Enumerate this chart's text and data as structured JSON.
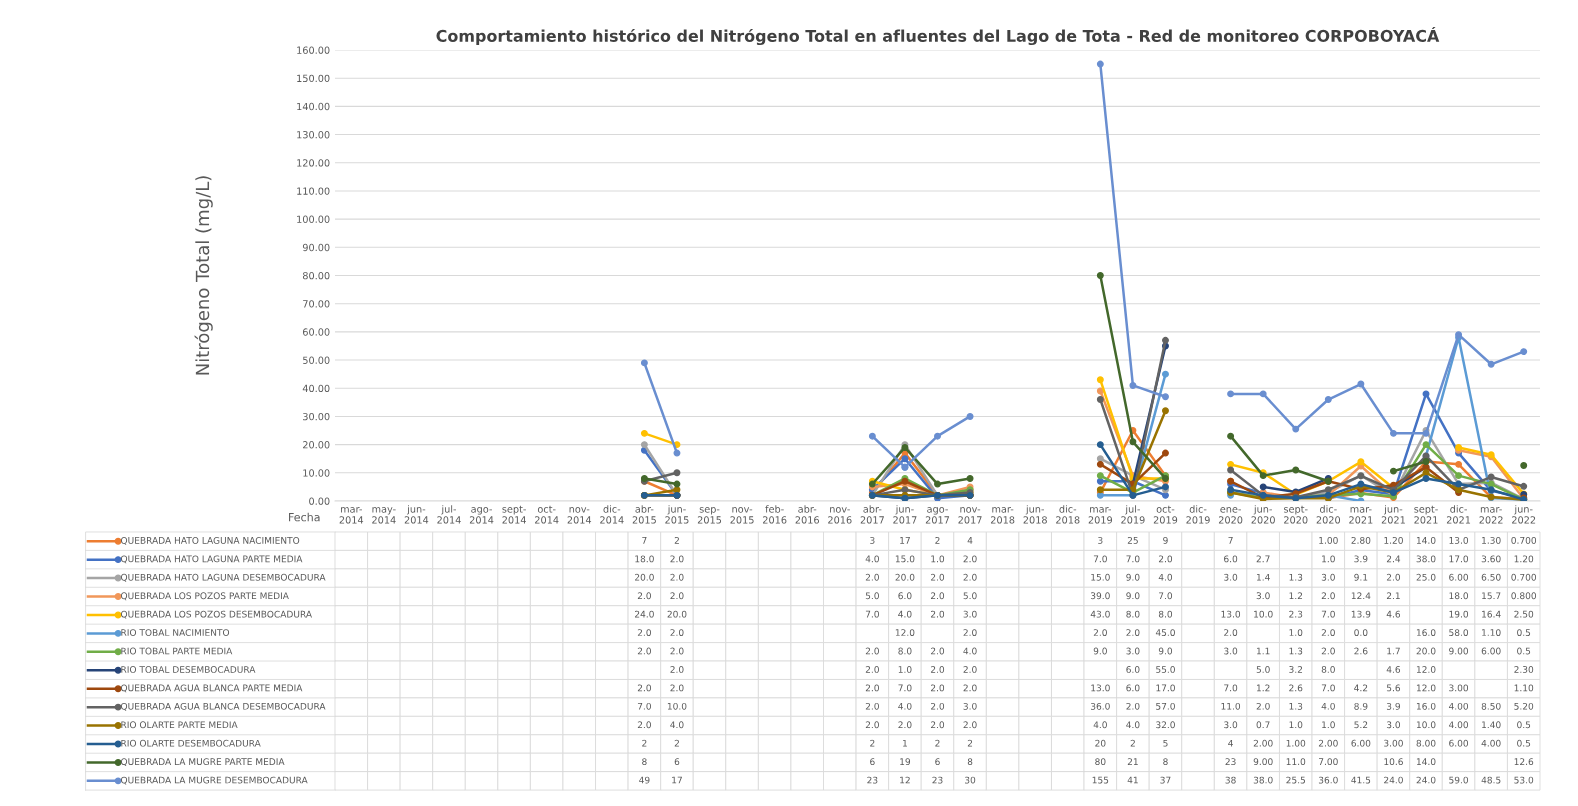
{
  "chart_data": {
    "type": "line",
    "title": "Comportamiento histórico del Nitrógeno Total en afluentes del Lago de Tota - Red de monitoreo CORPOBOYACÁ",
    "ylabel": "Nitrógeno Total (mg/L)",
    "xlabel": "Fecha",
    "categories": [
      "mar-2014",
      "may-2014",
      "jun-2014",
      "jul-2014",
      "ago-2014",
      "sept-2014",
      "oct-2014",
      "nov-2014",
      "dic-2014",
      "abr-2015",
      "jun-2015",
      "sep-2015",
      "nov-2015",
      "feb-2016",
      "abr-2016",
      "nov-2016",
      "abr-2017",
      "jun-2017",
      "ago-2017",
      "nov-2017",
      "mar-2018",
      "jun-2018",
      "dic-2018",
      "mar-2019",
      "jul-2019",
      "oct-2019",
      "dic-2019",
      "ene-2020",
      "jun-2020",
      "sept-2020",
      "dic-2020",
      "mar-2021",
      "jun-2021",
      "sept-2021",
      "dic-2021",
      "mar-2022",
      "jun-2022"
    ],
    "ylim": [
      0,
      160
    ],
    "yticks": [
      {
        "value": 0,
        "label": "0.00"
      },
      {
        "value": 10,
        "label": "10.00"
      },
      {
        "value": 20,
        "label": "20.00"
      },
      {
        "value": 30,
        "label": "30.00"
      },
      {
        "value": 40,
        "label": "40.00"
      },
      {
        "value": 50,
        "label": "50.00"
      },
      {
        "value": 60,
        "label": "60.00"
      },
      {
        "value": 70,
        "label": "70.00"
      },
      {
        "value": 80,
        "label": "80.00"
      },
      {
        "value": 90,
        "label": "90.00"
      },
      {
        "value": 100,
        "label": "100.00"
      },
      {
        "value": 110,
        "label": "110.00"
      },
      {
        "value": 120,
        "label": "120.00"
      },
      {
        "value": 130,
        "label": "130.00"
      },
      {
        "value": 140,
        "label": "140.00"
      },
      {
        "value": 150,
        "label": "150.00"
      },
      {
        "value": 160,
        "label": "160.00"
      }
    ],
    "grid": "y",
    "legend": "bottom",
    "marker": "circle",
    "line_style": "solid",
    "series": [
      {
        "name": "QUEBRADA HATO LAGUNA NACIMIENTO",
        "color": "#ed7d31",
        "values": [
          null,
          null,
          null,
          null,
          null,
          null,
          null,
          null,
          null,
          7,
          2,
          null,
          null,
          null,
          null,
          null,
          3,
          17,
          2,
          4,
          null,
          null,
          null,
          3,
          25,
          9,
          null,
          7,
          null,
          null,
          1.0,
          2.8,
          1.2,
          14.0,
          13.0,
          1.3,
          0.7
        ],
        "value_labels": [
          null,
          null,
          null,
          null,
          null,
          null,
          null,
          null,
          null,
          "7",
          "2",
          null,
          null,
          null,
          null,
          null,
          "3",
          "17",
          "2",
          "4",
          null,
          null,
          null,
          "3",
          "25",
          "9",
          null,
          "7",
          null,
          null,
          "1.00",
          "2.80",
          "1.20",
          "14.0",
          "13.0",
          "1.30",
          "0.700"
        ]
      },
      {
        "name": "QUEBRADA HATO LAGUNA PARTE MEDIA",
        "color": "#4472c4",
        "values": [
          null,
          null,
          null,
          null,
          null,
          null,
          null,
          null,
          null,
          18.0,
          2.0,
          null,
          null,
          null,
          null,
          null,
          4.0,
          15.0,
          1.0,
          2.0,
          null,
          null,
          null,
          7.0,
          7.0,
          2.0,
          null,
          6.0,
          2.7,
          null,
          1.0,
          3.9,
          2.4,
          38.0,
          17.0,
          3.6,
          1.2
        ],
        "value_labels": [
          null,
          null,
          null,
          null,
          null,
          null,
          null,
          null,
          null,
          "18.0",
          "2.0",
          null,
          null,
          null,
          null,
          null,
          "4.0",
          "15.0",
          "1.0",
          "2.0",
          null,
          null,
          null,
          "7.0",
          "7.0",
          "2.0",
          null,
          "6.0",
          "2.7",
          null,
          "1.0",
          "3.9",
          "2.4",
          "38.0",
          "17.0",
          "3.60",
          "1.20"
        ]
      },
      {
        "name": "QUEBRADA HATO LAGUNA DESEMBOCADURA",
        "color": "#a5a5a5",
        "values": [
          null,
          null,
          null,
          null,
          null,
          null,
          null,
          null,
          null,
          20.0,
          2.0,
          null,
          null,
          null,
          null,
          null,
          2.0,
          20.0,
          2.0,
          2.0,
          null,
          null,
          null,
          15.0,
          9.0,
          4.0,
          null,
          3.0,
          1.4,
          1.3,
          3.0,
          9.1,
          2.0,
          25.0,
          6.0,
          6.5,
          0.7
        ],
        "value_labels": [
          null,
          null,
          null,
          null,
          null,
          null,
          null,
          null,
          null,
          "20.0",
          "2.0",
          null,
          null,
          null,
          null,
          null,
          "2.0",
          "20.0",
          "2.0",
          "2.0",
          null,
          null,
          null,
          "15.0",
          "9.0",
          "4.0",
          null,
          "3.0",
          "1.4",
          "1.3",
          "3.0",
          "9.1",
          "2.0",
          "25.0",
          "6.00",
          "6.50",
          "0.700"
        ]
      },
      {
        "name": "QUEBRADA LOS POZOS PARTE MEDIA",
        "color": "#f1975a",
        "values": [
          null,
          null,
          null,
          null,
          null,
          null,
          null,
          null,
          null,
          2.0,
          2.0,
          null,
          null,
          null,
          null,
          null,
          5.0,
          6.0,
          2.0,
          5.0,
          null,
          null,
          null,
          39.0,
          9.0,
          7.0,
          null,
          null,
          3.0,
          1.2,
          2.0,
          12.4,
          2.1,
          null,
          18.0,
          15.7,
          0.8
        ],
        "value_labels": [
          null,
          null,
          null,
          null,
          null,
          null,
          null,
          null,
          null,
          "2.0",
          "2.0",
          null,
          null,
          null,
          null,
          null,
          "5.0",
          "6.0",
          "2.0",
          "5.0",
          null,
          null,
          null,
          "39.0",
          "9.0",
          "7.0",
          null,
          null,
          "3.0",
          "1.2",
          "2.0",
          "12.4",
          "2.1",
          null,
          "18.0",
          "15.7",
          "0.800"
        ]
      },
      {
        "name": "QUEBRADA LOS POZOS DESEMBOCADURA",
        "color": "#ffc000",
        "values": [
          null,
          null,
          null,
          null,
          null,
          null,
          null,
          null,
          null,
          24.0,
          20.0,
          null,
          null,
          null,
          null,
          null,
          7.0,
          4.0,
          2.0,
          3.0,
          null,
          null,
          null,
          43.0,
          8.0,
          8.0,
          null,
          13.0,
          10.0,
          2.3,
          7.0,
          13.9,
          4.6,
          null,
          19.0,
          16.4,
          2.5
        ],
        "value_labels": [
          null,
          null,
          null,
          null,
          null,
          null,
          null,
          null,
          null,
          "24.0",
          "20.0",
          null,
          null,
          null,
          null,
          null,
          "7.0",
          "4.0",
          "2.0",
          "3.0",
          null,
          null,
          null,
          "43.0",
          "8.0",
          "8.0",
          null,
          "13.0",
          "10.0",
          "2.3",
          "7.0",
          "13.9",
          "4.6",
          null,
          "19.0",
          "16.4",
          "2.50"
        ]
      },
      {
        "name": "RIO TOBAL NACIMIENTO",
        "color": "#5b9bd5",
        "values": [
          null,
          null,
          null,
          null,
          null,
          null,
          null,
          null,
          null,
          2.0,
          2.0,
          null,
          null,
          null,
          null,
          null,
          null,
          12.0,
          null,
          2.0,
          null,
          null,
          null,
          2.0,
          2.0,
          45.0,
          null,
          2.0,
          null,
          1.0,
          2.0,
          0.0,
          null,
          16.0,
          58.0,
          1.1,
          0.5
        ],
        "value_labels": [
          null,
          null,
          null,
          null,
          null,
          null,
          null,
          null,
          null,
          "2.0",
          "2.0",
          null,
          null,
          null,
          null,
          null,
          null,
          "12.0",
          null,
          "2.0",
          null,
          null,
          null,
          "2.0",
          "2.0",
          "45.0",
          null,
          "2.0",
          null,
          "1.0",
          "2.0",
          "0.0",
          null,
          "16.0",
          "58.0",
          "1.10",
          "0.5"
        ]
      },
      {
        "name": "RIO TOBAL PARTE MEDIA",
        "color": "#70ad47",
        "values": [
          null,
          null,
          null,
          null,
          null,
          null,
          null,
          null,
          null,
          2.0,
          2.0,
          null,
          null,
          null,
          null,
          null,
          2.0,
          8.0,
          2.0,
          4.0,
          null,
          null,
          null,
          9.0,
          3.0,
          9.0,
          null,
          3.0,
          1.1,
          1.3,
          2.0,
          2.6,
          1.7,
          20.0,
          9.0,
          6.0,
          0.5
        ],
        "value_labels": [
          null,
          null,
          null,
          null,
          null,
          null,
          null,
          null,
          null,
          "2.0",
          "2.0",
          null,
          null,
          null,
          null,
          null,
          "2.0",
          "8.0",
          "2.0",
          "4.0",
          null,
          null,
          null,
          "9.0",
          "3.0",
          "9.0",
          null,
          "3.0",
          "1.1",
          "1.3",
          "2.0",
          "2.6",
          "1.7",
          "20.0",
          "9.00",
          "6.00",
          "0.5"
        ]
      },
      {
        "name": "RIO TOBAL DESEMBOCADURA",
        "color": "#264478",
        "values": [
          null,
          null,
          null,
          null,
          null,
          null,
          null,
          null,
          null,
          null,
          2.0,
          null,
          null,
          null,
          null,
          null,
          2.0,
          1.0,
          2.0,
          2.0,
          null,
          null,
          null,
          null,
          6.0,
          55.0,
          null,
          null,
          5.0,
          3.2,
          8.0,
          null,
          4.6,
          12.0,
          null,
          null,
          2.3
        ],
        "value_labels": [
          null,
          null,
          null,
          null,
          null,
          null,
          null,
          null,
          null,
          null,
          "2.0",
          null,
          null,
          null,
          null,
          null,
          "2.0",
          "1.0",
          "2.0",
          "2.0",
          null,
          null,
          null,
          null,
          "6.0",
          "55.0",
          null,
          null,
          "5.0",
          "3.2",
          "8.0",
          null,
          "4.6",
          "12.0",
          null,
          null,
          "2.30"
        ]
      },
      {
        "name": "QUEBRADA AGUA BLANCA PARTE MEDIA",
        "color": "#9e480e",
        "values": [
          null,
          null,
          null,
          null,
          null,
          null,
          null,
          null,
          null,
          2.0,
          2.0,
          null,
          null,
          null,
          null,
          null,
          2.0,
          7.0,
          2.0,
          2.0,
          null,
          null,
          null,
          13.0,
          6.0,
          17.0,
          null,
          7.0,
          1.2,
          2.6,
          7.0,
          4.2,
          5.6,
          12.0,
          3.0,
          null,
          1.1
        ],
        "value_labels": [
          null,
          null,
          null,
          null,
          null,
          null,
          null,
          null,
          null,
          "2.0",
          "2.0",
          null,
          null,
          null,
          null,
          null,
          "2.0",
          "7.0",
          "2.0",
          "2.0",
          null,
          null,
          null,
          "13.0",
          "6.0",
          "17.0",
          null,
          "7.0",
          "1.2",
          "2.6",
          "7.0",
          "4.2",
          "5.6",
          "12.0",
          "3.00",
          null,
          "1.10"
        ]
      },
      {
        "name": "QUEBRADA AGUA BLANCA DESEMBOCADURA",
        "color": "#636363",
        "values": [
          null,
          null,
          null,
          null,
          null,
          null,
          null,
          null,
          null,
          7.0,
          10.0,
          null,
          null,
          null,
          null,
          null,
          2.0,
          4.0,
          2.0,
          3.0,
          null,
          null,
          null,
          36.0,
          2.0,
          57.0,
          null,
          11.0,
          2.0,
          1.3,
          4.0,
          8.9,
          3.9,
          16.0,
          4.0,
          8.5,
          5.2
        ],
        "value_labels": [
          null,
          null,
          null,
          null,
          null,
          null,
          null,
          null,
          null,
          "7.0",
          "10.0",
          null,
          null,
          null,
          null,
          null,
          "2.0",
          "4.0",
          "2.0",
          "3.0",
          null,
          null,
          null,
          "36.0",
          "2.0",
          "57.0",
          null,
          "11.0",
          "2.0",
          "1.3",
          "4.0",
          "8.9",
          "3.9",
          "16.0",
          "4.00",
          "8.50",
          "5.20"
        ]
      },
      {
        "name": "RIO OLARTE PARTE MEDIA",
        "color": "#997300",
        "values": [
          null,
          null,
          null,
          null,
          null,
          null,
          null,
          null,
          null,
          2.0,
          4.0,
          null,
          null,
          null,
          null,
          null,
          2.0,
          2.0,
          2.0,
          2.0,
          null,
          null,
          null,
          4.0,
          4.0,
          32.0,
          null,
          3.0,
          0.7,
          1.0,
          1.0,
          5.2,
          3.0,
          10.0,
          4.0,
          1.4,
          0.5
        ],
        "value_labels": [
          null,
          null,
          null,
          null,
          null,
          null,
          null,
          null,
          null,
          "2.0",
          "4.0",
          null,
          null,
          null,
          null,
          null,
          "2.0",
          "2.0",
          "2.0",
          "2.0",
          null,
          null,
          null,
          "4.0",
          "4.0",
          "32.0",
          null,
          "3.0",
          "0.7",
          "1.0",
          "1.0",
          "5.2",
          "3.0",
          "10.0",
          "4.00",
          "1.40",
          "0.5"
        ]
      },
      {
        "name": "RIO OLARTE DESEMBOCADURA",
        "color": "#255e91",
        "values": [
          null,
          null,
          null,
          null,
          null,
          null,
          null,
          null,
          null,
          2,
          2,
          null,
          null,
          null,
          null,
          null,
          2,
          1,
          2,
          2,
          null,
          null,
          null,
          20,
          2,
          5,
          null,
          4,
          2.0,
          1.0,
          2.0,
          6.0,
          3.0,
          8.0,
          6.0,
          4.0,
          0.5
        ],
        "value_labels": [
          null,
          null,
          null,
          null,
          null,
          null,
          null,
          null,
          null,
          "2",
          "2",
          null,
          null,
          null,
          null,
          null,
          "2",
          "1",
          "2",
          "2",
          null,
          null,
          null,
          "20",
          "2",
          "5",
          null,
          "4",
          "2.00",
          "1.00",
          "2.00",
          "6.00",
          "3.00",
          "8.00",
          "6.00",
          "4.00",
          "0.5"
        ]
      },
      {
        "name": "QUEBRADA LA MUGRE PARTE MEDIA",
        "color": "#43682b",
        "values": [
          null,
          null,
          null,
          null,
          null,
          null,
          null,
          null,
          null,
          8,
          6,
          null,
          null,
          null,
          null,
          null,
          6,
          19,
          6,
          8,
          null,
          null,
          null,
          80,
          21,
          8,
          null,
          23,
          9.0,
          11.0,
          7.0,
          null,
          10.6,
          14.0,
          null,
          null,
          12.6
        ],
        "value_labels": [
          null,
          null,
          null,
          null,
          null,
          null,
          null,
          null,
          null,
          "8",
          "6",
          null,
          null,
          null,
          null,
          null,
          "6",
          "19",
          "6",
          "8",
          null,
          null,
          null,
          "80",
          "21",
          "8",
          null,
          "23",
          "9.00",
          "11.0",
          "7.00",
          null,
          "10.6",
          "14.0",
          null,
          null,
          "12.6"
        ]
      },
      {
        "name": "QUEBRADA LA MUGRE DESEMBOCADURA",
        "color": "#698ed0",
        "values": [
          null,
          null,
          null,
          null,
          null,
          null,
          null,
          null,
          null,
          49,
          17,
          null,
          null,
          null,
          null,
          null,
          23,
          12,
          23,
          30,
          null,
          null,
          null,
          155,
          41,
          37,
          null,
          38,
          38.0,
          25.5,
          36.0,
          41.5,
          24.0,
          24.0,
          59.0,
          48.5,
          53.0
        ],
        "value_labels": [
          null,
          null,
          null,
          null,
          null,
          null,
          null,
          null,
          null,
          "49",
          "17",
          null,
          null,
          null,
          null,
          null,
          "23",
          "12",
          "23",
          "30",
          null,
          null,
          null,
          "155",
          "41",
          "37",
          null,
          "38",
          "38.0",
          "25.5",
          "36.0",
          "41.5",
          "24.0",
          "24.0",
          "59.0",
          "48.5",
          "53.0"
        ]
      }
    ]
  }
}
